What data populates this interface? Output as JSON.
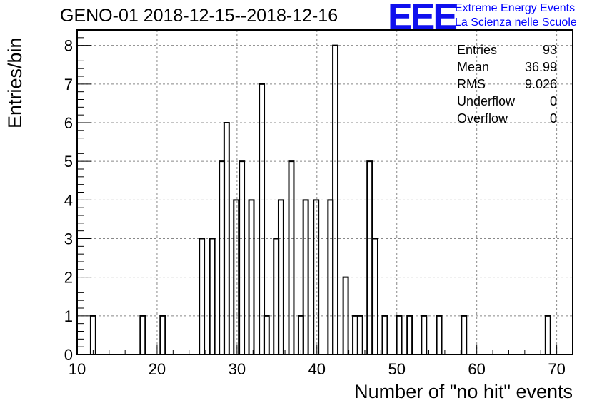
{
  "chart_data": {
    "type": "bar",
    "title": "GENO-01 2018-12-15--2018-12-16",
    "xlabel": "Number of \"no hit\" events",
    "ylabel": "Entries/bin",
    "xlim": [
      10,
      72
    ],
    "ylim": [
      0,
      8.4
    ],
    "x_ticks": [
      "10",
      "20",
      "30",
      "40",
      "50",
      "60",
      "70"
    ],
    "y_ticks": [
      "0",
      "1",
      "2",
      "3",
      "4",
      "5",
      "6",
      "7",
      "8"
    ],
    "grid": true,
    "bin_width": 0.62,
    "bins": [
      {
        "x": 12.0,
        "value": 1
      },
      {
        "x": 18.2,
        "value": 1
      },
      {
        "x": 20.7,
        "value": 1
      },
      {
        "x": 25.6,
        "value": 3
      },
      {
        "x": 26.9,
        "value": 3
      },
      {
        "x": 28.1,
        "value": 5
      },
      {
        "x": 28.7,
        "value": 6
      },
      {
        "x": 29.9,
        "value": 4
      },
      {
        "x": 30.6,
        "value": 5
      },
      {
        "x": 31.8,
        "value": 4
      },
      {
        "x": 33.1,
        "value": 7
      },
      {
        "x": 33.7,
        "value": 1
      },
      {
        "x": 34.9,
        "value": 3
      },
      {
        "x": 35.5,
        "value": 4
      },
      {
        "x": 36.8,
        "value": 5
      },
      {
        "x": 38.0,
        "value": 1
      },
      {
        "x": 38.6,
        "value": 4
      },
      {
        "x": 39.9,
        "value": 4
      },
      {
        "x": 41.7,
        "value": 4
      },
      {
        "x": 42.3,
        "value": 8
      },
      {
        "x": 43.6,
        "value": 2
      },
      {
        "x": 44.8,
        "value": 1
      },
      {
        "x": 45.4,
        "value": 1
      },
      {
        "x": 46.6,
        "value": 5
      },
      {
        "x": 47.3,
        "value": 3
      },
      {
        "x": 48.5,
        "value": 1
      },
      {
        "x": 50.3,
        "value": 1
      },
      {
        "x": 51.6,
        "value": 1
      },
      {
        "x": 53.4,
        "value": 1
      },
      {
        "x": 55.3,
        "value": 1
      },
      {
        "x": 58.4,
        "value": 1
      },
      {
        "x": 68.9,
        "value": 1
      }
    ],
    "stats": [
      {
        "label": "Entries",
        "value": "93"
      },
      {
        "label": "Mean",
        "value": "36.99"
      },
      {
        "label": "RMS",
        "value": "9.026"
      },
      {
        "label": "Underflow",
        "value": "0"
      },
      {
        "label": "Overflow",
        "value": "0"
      }
    ]
  },
  "logo": {
    "mark": "EEE",
    "line1": "Extreme Energy Events",
    "line2": "La Scienza nelle Scuole",
    "color": "#1010ee"
  }
}
